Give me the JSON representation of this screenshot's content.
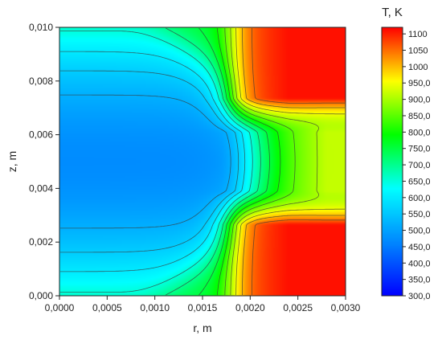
{
  "chart_data": {
    "type": "heatmap",
    "subtype": "filled-contour",
    "xlabel": "r, m",
    "ylabel": "z, m",
    "xlim": [
      0,
      0.003
    ],
    "ylim": [
      0,
      0.01
    ],
    "x_ticks": [
      "0,0000",
      "0,0005",
      "0,0010",
      "0,0015",
      "0,0020",
      "0,0025",
      "0,0030"
    ],
    "y_ticks": [
      "0,000",
      "0,002",
      "0,004",
      "0,006",
      "0,008",
      "0,010"
    ],
    "colorbar": {
      "title": "T, K",
      "min": 300,
      "max": 1120,
      "ticks": [
        "300,0",
        "350,0",
        "400,0",
        "450,0",
        "500,0",
        "550,0",
        "600,0",
        "650,0",
        "700,0",
        "750,0",
        "800,0",
        "850,0",
        "900,0",
        "950,0",
        "1000",
        "1050",
        "1100"
      ],
      "colors": [
        "#0000ff",
        "#0088ff",
        "#00ffff",
        "#00ff00",
        "#ffff00",
        "#ff0000"
      ]
    },
    "field_samples": {
      "description_units": "r in m, z in m, T in K",
      "hot_core_r_from": 0.0018,
      "points": [
        {
          "r": 0.0,
          "z": 0.005,
          "T": 470
        },
        {
          "r": 0.0,
          "z": 0.01,
          "T": 610
        },
        {
          "r": 0.0,
          "z": 0.0,
          "T": 610
        },
        {
          "r": 0.0015,
          "z": 0.005,
          "T": 600
        },
        {
          "r": 0.0022,
          "z": 0.005,
          "T": 830
        },
        {
          "r": 0.0029,
          "z": 0.005,
          "T": 960
        },
        {
          "r": 0.0025,
          "z": 0.009,
          "T": 1100
        },
        {
          "r": 0.0025,
          "z": 0.001,
          "T": 1100
        }
      ]
    },
    "contour_levels": [
      520,
      560,
      600,
      650,
      700,
      750,
      800,
      850,
      900,
      950,
      1000,
      1050
    ]
  }
}
